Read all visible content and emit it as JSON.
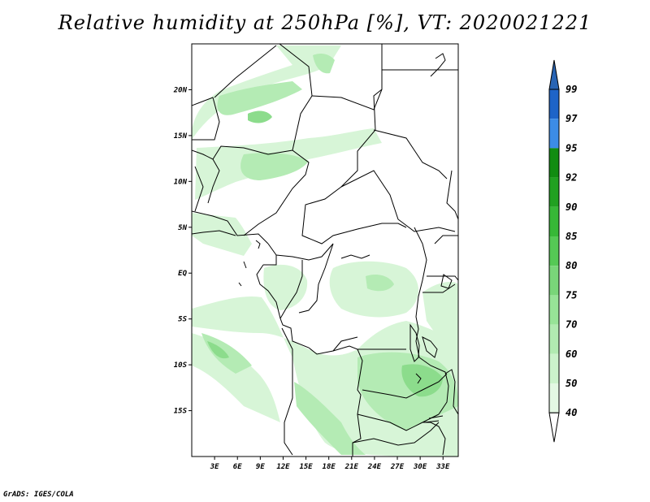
{
  "title": "Relative humidity at 250hPa [%], VT: 2020021221",
  "credit": "GrADS: IGES/COLA",
  "map": {
    "lon_range": [
      0,
      35
    ],
    "lat_range": [
      -20,
      25
    ],
    "lat_ticks": [
      "20N",
      "15N",
      "10N",
      "5N",
      "EQ",
      "5S",
      "10S",
      "15S"
    ],
    "lat_tick_values": [
      20,
      15,
      10,
      5,
      0,
      -5,
      -10,
      -15
    ],
    "lon_ticks": [
      "3E",
      "6E",
      "9E",
      "12E",
      "15E",
      "18E",
      "21E",
      "24E",
      "27E",
      "30E",
      "33E"
    ],
    "lon_tick_values": [
      3,
      6,
      9,
      12,
      15,
      18,
      21,
      24,
      27,
      30,
      33
    ]
  },
  "colorbar": {
    "labels": [
      "99",
      "97",
      "95",
      "92",
      "90",
      "85",
      "80",
      "75",
      "70",
      "60",
      "50",
      "40"
    ],
    "colors": [
      "#1e64c8",
      "#3c8ce6",
      "#118c11",
      "#21a121",
      "#37b837",
      "#55c955",
      "#79d679",
      "#97e397",
      "#b1eab1",
      "#cbf2cb",
      "#e3f8e3"
    ],
    "top_triangle_color": "#2864b4",
    "bottom_triangle_color": "#ffffff"
  },
  "colors": {
    "light_green": "#d7f5d7",
    "mid_green": "#b4ebb4",
    "dark_green": "#8cdc8c"
  }
}
